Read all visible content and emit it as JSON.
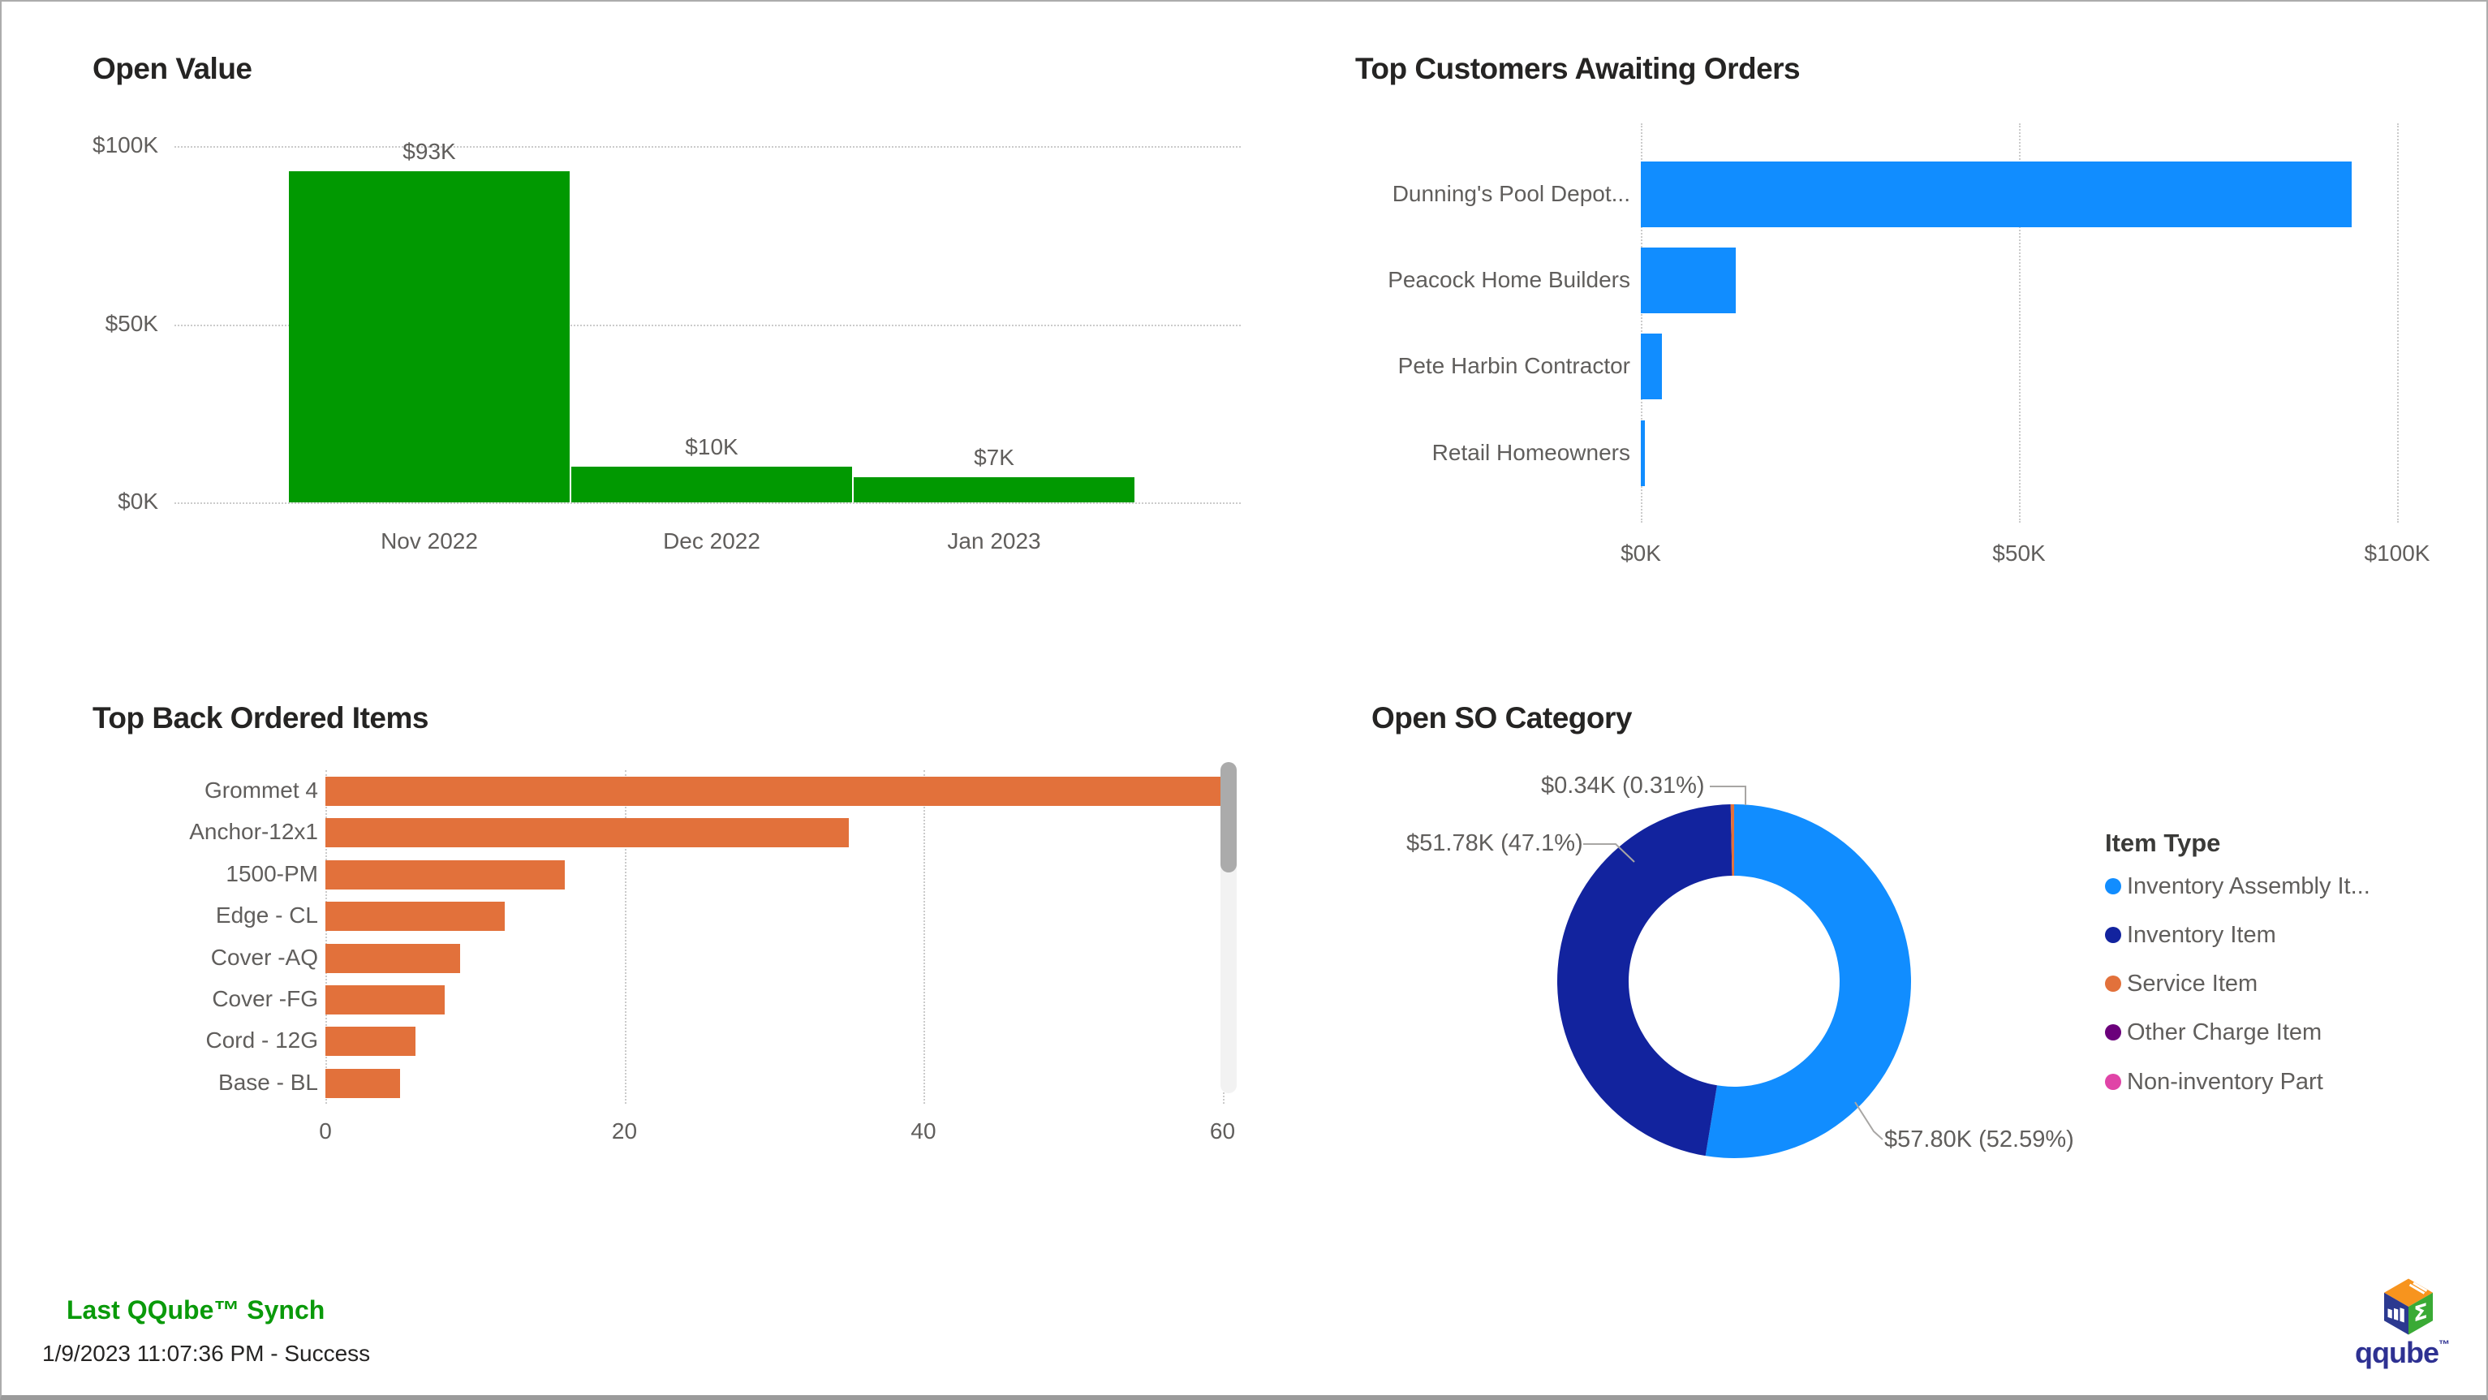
{
  "page": {
    "footer": {
      "title": "Last QQube™ Synch",
      "status": "1/9/2023 11:07:36 PM - Success"
    },
    "logo": {
      "text": "qqube",
      "tm": "™"
    }
  },
  "colors": {
    "green_bar": "#019901",
    "blue_bar": "#118DFF",
    "orange_bar": "#E2713B",
    "title_text": "#252423",
    "axis_text": "#605E5C",
    "gridline": "#CBCBCB",
    "footer_green": "#0A9A0A"
  },
  "chart_data": [
    {
      "id": "open-value",
      "type": "bar",
      "orientation": "vertical",
      "title": "Open Value",
      "categories": [
        "Nov 2022",
        "Dec 2022",
        "Jan 2023"
      ],
      "values": [
        93,
        10,
        7
      ],
      "data_labels": [
        "$93K",
        "$10K",
        "$7K"
      ],
      "y_ticks": [
        {
          "value": 0,
          "label": "$0K"
        },
        {
          "value": 50,
          "label": "$50K"
        },
        {
          "value": 100,
          "label": "$100K"
        }
      ],
      "ylim": [
        0,
        100
      ],
      "grid": "dotted-horizontal",
      "color": "#019901"
    },
    {
      "id": "top-customers-awaiting-orders",
      "type": "bar",
      "orientation": "horizontal",
      "title": "Top Customers Awaiting Orders",
      "categories": [
        "Dunning's Pool Depot...",
        "Peacock Home Builders",
        "Pete Harbin Contractor",
        "Retail Homeowners"
      ],
      "values": [
        94,
        12.5,
        2.8,
        0.5
      ],
      "x_ticks": [
        {
          "value": 0,
          "label": "$0K"
        },
        {
          "value": 50,
          "label": "$50K"
        },
        {
          "value": 100,
          "label": "$100K"
        }
      ],
      "xlim": [
        0,
        100
      ],
      "grid": "dotted-vertical",
      "color": "#118DFF"
    },
    {
      "id": "top-back-ordered-items",
      "type": "bar",
      "orientation": "horizontal",
      "title": "Top Back Ordered Items",
      "categories": [
        "Grommet 4",
        "Anchor-12x1",
        "1500-PM",
        "Edge - CL",
        "Cover -AQ",
        "Cover -FG",
        "Cord - 12G",
        "Base - BL"
      ],
      "values": [
        60,
        35,
        16,
        12,
        9,
        8,
        6,
        5
      ],
      "x_ticks": [
        {
          "value": 0,
          "label": "0"
        },
        {
          "value": 20,
          "label": "20"
        },
        {
          "value": 40,
          "label": "40"
        },
        {
          "value": 60,
          "label": "60"
        }
      ],
      "xlim": [
        0,
        60
      ],
      "grid": "dotted-vertical",
      "has_scrollbar": true,
      "color": "#E2713B"
    },
    {
      "id": "open-so-category",
      "type": "pie",
      "subtype": "donut",
      "title": "Open SO Category",
      "legend_title": "Item Type",
      "legend_position": "right",
      "slices": [
        {
          "label": "Inventory Assembly It...",
          "value_k": 57.8,
          "pct": 52.59,
          "value_label": "$57.80K (52.59%)",
          "color": "#118DFF"
        },
        {
          "label": "Inventory Item",
          "value_k": 51.78,
          "pct": 47.1,
          "value_label": "$51.78K (47.1%)",
          "color": "#12239E"
        },
        {
          "label": "Service Item",
          "value_k": 0.34,
          "pct": 0.31,
          "value_label": "$0.34K (0.31%)",
          "color": "#E2713B"
        },
        {
          "label": "Other Charge Item",
          "value_k": 0,
          "pct": 0,
          "value_label": "",
          "color": "#6B007B"
        },
        {
          "label": "Non-inventory Part",
          "value_k": 0,
          "pct": 0,
          "value_label": "",
          "color": "#E044A7"
        }
      ]
    }
  ]
}
